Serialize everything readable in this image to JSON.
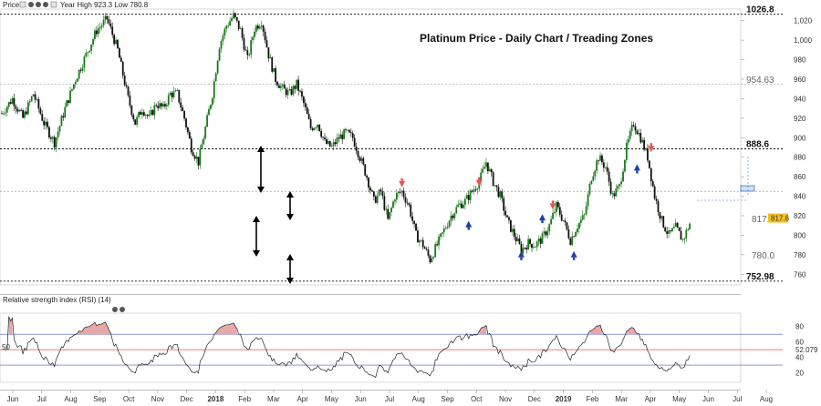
{
  "header": {
    "price_label": "Price",
    "ohlc_text": "Year High 923.3 Low 780.8",
    "rsi_label": "Relative strength index (RSI) (14)"
  },
  "colors": {
    "candle_up": "#1a7a1a",
    "candle_down": "#111111",
    "arrow_up": "#1f3fa8",
    "arrow_down": "#e05555",
    "rsi_line": "#222222",
    "rsi_overbought_fill": "#e8a8a8",
    "rsi_upper_band": "#4a5ac8",
    "rsi_lower_band": "#4a5ac8",
    "rsi_mid_line": "#e05555",
    "last_price_tag": "#f0c020"
  },
  "chart_data": [
    {
      "type": "candlestick",
      "title": "Platinum Price - Daily Chart / Treading Zones",
      "y_ticks": [
        760,
        780,
        800,
        820,
        840,
        860,
        880,
        900,
        920,
        940,
        960,
        980,
        1000,
        1020
      ],
      "ylim": [
        750,
        1030
      ],
      "x_ticks": [
        "Jun",
        "Jul",
        "Aug",
        "Sep",
        "Oct",
        "Nov",
        "Dec",
        "2018",
        "Feb",
        "Mar",
        "Apr",
        "May",
        "Jun",
        "Jul",
        "Aug",
        "Sep",
        "Oct",
        "Nov",
        "Dec",
        "2019",
        "Feb",
        "Mar",
        "Apr",
        "May",
        "Jun",
        "Jul",
        "Aug"
      ],
      "last_price": 817.6,
      "path": [
        [
          0,
          925
        ],
        [
          3,
          940
        ],
        [
          6,
          920
        ],
        [
          9,
          945
        ],
        [
          12,
          915
        ],
        [
          15,
          895
        ],
        [
          18,
          930
        ],
        [
          21,
          960
        ],
        [
          24,
          985
        ],
        [
          27,
          1010
        ],
        [
          30,
          1022
        ],
        [
          33,
          990
        ],
        [
          36,
          940
        ],
        [
          38,
          915
        ],
        [
          40,
          930
        ],
        [
          42,
          920
        ],
        [
          44,
          935
        ],
        [
          46,
          930
        ],
        [
          48,
          945
        ],
        [
          50,
          945
        ],
        [
          52,
          920
        ],
        [
          54,
          890
        ],
        [
          56,
          875
        ],
        [
          58,
          910
        ],
        [
          60,
          945
        ],
        [
          62,
          995
        ],
        [
          64,
          1015
        ],
        [
          66,
          1025
        ],
        [
          68,
          1010
        ],
        [
          70,
          980
        ],
        [
          72,
          1012
        ],
        [
          74,
          1020
        ],
        [
          76,
          985
        ],
        [
          78,
          960
        ],
        [
          80,
          950
        ],
        [
          82,
          945
        ],
        [
          84,
          955
        ],
        [
          86,
          935
        ],
        [
          88,
          910
        ],
        [
          90,
          915
        ],
        [
          92,
          895
        ],
        [
          94,
          890
        ],
        [
          96,
          900
        ],
        [
          98,
          905
        ],
        [
          100,
          900
        ],
        [
          102,
          880
        ],
        [
          104,
          860
        ],
        [
          106,
          835
        ],
        [
          108,
          845
        ],
        [
          110,
          815
        ],
        [
          112,
          840
        ],
        [
          114,
          845
        ],
        [
          116,
          830
        ],
        [
          118,
          800
        ],
        [
          120,
          790
        ],
        [
          122,
          775
        ],
        [
          124,
          790
        ],
        [
          126,
          805
        ],
        [
          128,
          820
        ],
        [
          130,
          830
        ],
        [
          132,
          835
        ],
        [
          134,
          845
        ],
        [
          136,
          855
        ],
        [
          138,
          875
        ],
        [
          140,
          855
        ],
        [
          142,
          840
        ],
        [
          144,
          815
        ],
        [
          146,
          800
        ],
        [
          148,
          785
        ],
        [
          150,
          792
        ],
        [
          152,
          790
        ],
        [
          154,
          797
        ],
        [
          156,
          810
        ],
        [
          158,
          830
        ],
        [
          160,
          815
        ],
        [
          162,
          795
        ],
        [
          164,
          810
        ],
        [
          166,
          820
        ],
        [
          168,
          860
        ],
        [
          170,
          880
        ],
        [
          172,
          870
        ],
        [
          174,
          840
        ],
        [
          176,
          850
        ],
        [
          178,
          890
        ],
        [
          180,
          915
        ],
        [
          182,
          900
        ],
        [
          184,
          880
        ],
        [
          186,
          840
        ],
        [
          188,
          815
        ],
        [
          190,
          800
        ],
        [
          192,
          808
        ],
        [
          194,
          795
        ],
        [
          196,
          812
        ]
      ],
      "x_max": 210,
      "levels": [
        {
          "value": 1026.8,
          "label": "1026.8",
          "style": "bold"
        },
        {
          "value": 954.63,
          "label": "954.63",
          "style": "grey"
        },
        {
          "value": 888.6,
          "label": "888.6",
          "style": "bold"
        },
        {
          "value": 845,
          "label": "",
          "style": "grey"
        },
        {
          "value": 752.98,
          "label": "752.98",
          "style": "bold"
        }
      ],
      "level_labels_extra": [
        {
          "value": 817.0,
          "label": "817.0"
        },
        {
          "value": 780.0,
          "label": "780.0"
        }
      ],
      "up_arrows_at": [
        [
          133,
          812
        ],
        [
          148,
          781
        ],
        [
          154,
          819
        ],
        [
          163,
          781
        ],
        [
          181,
          870
        ]
      ],
      "down_arrows_at": [
        [
          114,
          852
        ],
        [
          136,
          853
        ],
        [
          157,
          829
        ],
        [
          185,
          888
        ]
      ]
    },
    {
      "type": "line",
      "name": "RSI",
      "y_ticks": [
        20,
        40,
        60,
        80
      ],
      "ylim": [
        10,
        95
      ],
      "upper_band": 70,
      "lower_band": 30,
      "mid_line": 50,
      "last_value": "52.079",
      "left_marker": "50"
    }
  ]
}
